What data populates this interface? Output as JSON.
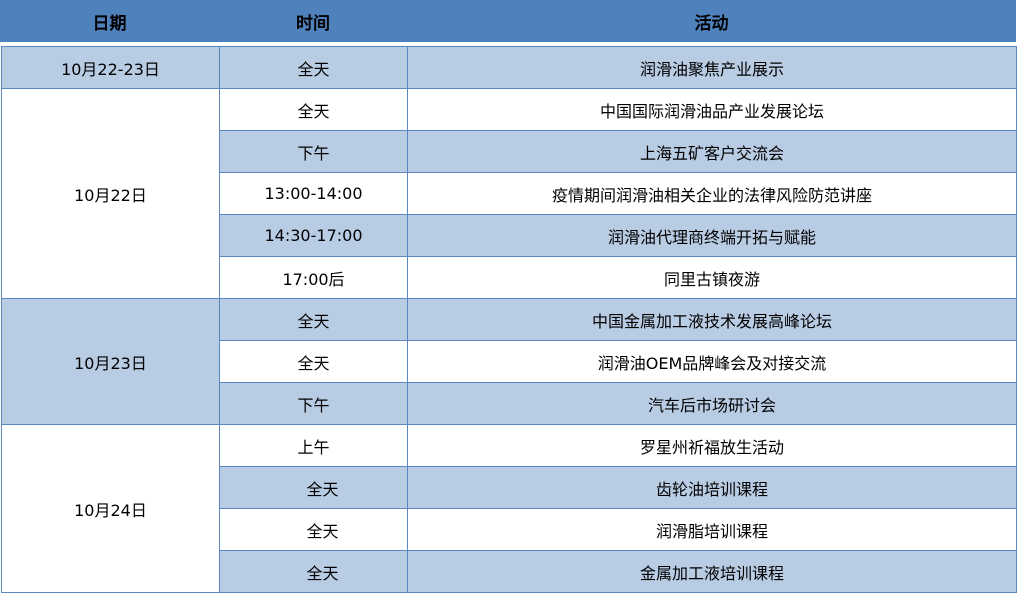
{
  "header": {
    "date": "日期",
    "time": "时间",
    "activity": "活动"
  },
  "colors": {
    "header": "#4f81bd",
    "band": "#b8cce4",
    "border": "#5b87c0"
  },
  "groups": [
    {
      "date": "10月22-23日",
      "rows": [
        {
          "time": "全天",
          "activity": "润滑油聚焦产业展示"
        }
      ]
    },
    {
      "date": "10月22日",
      "rows": [
        {
          "time": "全天",
          "activity": "中国国际润滑油品产业发展论坛"
        },
        {
          "time": "下午",
          "activity": "上海五矿客户交流会"
        },
        {
          "time": "13:00-14:00",
          "activity": "疫情期间润滑油相关企业的法律风险防范讲座"
        },
        {
          "time": "14:30-17:00",
          "activity": "润滑油代理商终端开拓与赋能"
        },
        {
          "time": "17:00后",
          "activity": "同里古镇夜游"
        }
      ]
    },
    {
      "date": "10月23日",
      "rows": [
        {
          "time": "全天",
          "activity": "中国金属加工液技术发展高峰论坛"
        },
        {
          "time": "全天",
          "activity": "润滑油OEM品牌峰会及对接交流"
        },
        {
          "time": "下午",
          "activity": "汽车后市场研讨会"
        }
      ]
    },
    {
      "date": "10月24日",
      "rows": [
        {
          "time": "上午",
          "activity": "罗星州祈福放生活动"
        },
        {
          "time": "全天",
          "activity": "齿轮油培训课程"
        },
        {
          "time": "全天",
          "activity": "润滑脂培训课程"
        },
        {
          "time": "全天",
          "activity": "金属加工液培训课程"
        }
      ]
    }
  ]
}
